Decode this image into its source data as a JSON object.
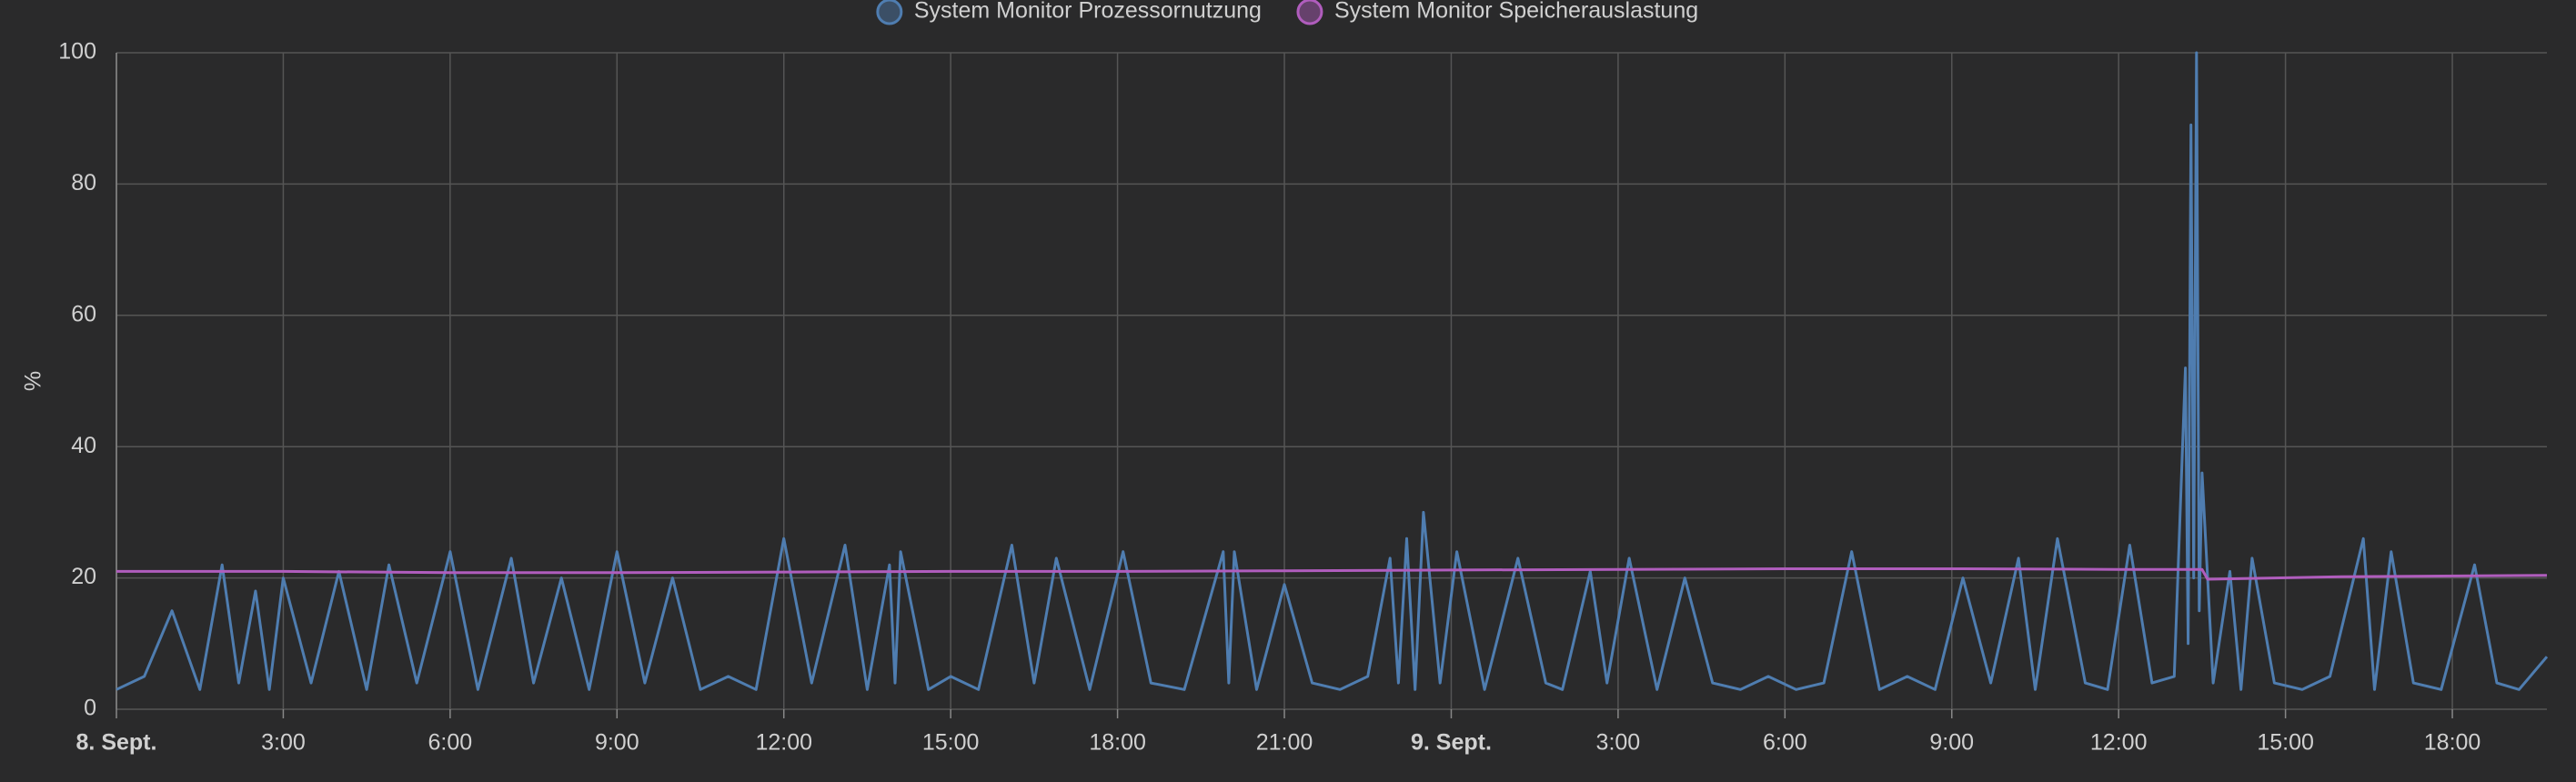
{
  "chart_data": {
    "type": "line",
    "y_label": "%",
    "xlim": [
      0,
      43.7
    ],
    "xticks": [
      {
        "value": 0,
        "label": "8. Sept."
      },
      {
        "value": 3,
        "label": "3:00"
      },
      {
        "value": 6,
        "label": "6:00"
      },
      {
        "value": 9,
        "label": "9:00"
      },
      {
        "value": 12,
        "label": "12:00"
      },
      {
        "value": 15,
        "label": "15:00"
      },
      {
        "value": 18,
        "label": "18:00"
      },
      {
        "value": 21,
        "label": "21:00"
      },
      {
        "value": 24,
        "label": "9. Sept."
      },
      {
        "value": 27,
        "label": "3:00"
      },
      {
        "value": 30,
        "label": "6:00"
      },
      {
        "value": 33,
        "label": "9:00"
      },
      {
        "value": 36,
        "label": "12:00"
      },
      {
        "value": 39,
        "label": "15:00"
      },
      {
        "value": 42,
        "label": "18:00"
      }
    ],
    "ylim": [
      0,
      100
    ],
    "yticks": [
      0,
      20,
      40,
      60,
      80,
      100
    ],
    "grid": true,
    "legend": "top",
    "series": [
      {
        "name": "System Monitor Prozessornutzung",
        "color": "#4f7db0",
        "x": [
          0,
          0.5,
          1.0,
          1.5,
          1.9,
          2.2,
          2.5,
          2.75,
          3.0,
          3.5,
          4.0,
          4.5,
          4.9,
          5.4,
          6.0,
          6.5,
          7.1,
          7.5,
          8.0,
          8.5,
          9.0,
          9.5,
          10.0,
          10.5,
          11.0,
          11.5,
          12.0,
          12.5,
          13.1,
          13.5,
          13.9,
          14.0,
          14.1,
          14.6,
          15.0,
          15.5,
          16.1,
          16.5,
          16.9,
          17.5,
          18.1,
          18.6,
          19.2,
          19.9,
          20.0,
          20.1,
          20.5,
          21.0,
          21.5,
          22.0,
          22.5,
          22.9,
          23.05,
          23.2,
          23.35,
          23.5,
          23.8,
          24.1,
          24.6,
          25.2,
          25.7,
          26.0,
          26.5,
          26.8,
          27.2,
          27.7,
          28.2,
          28.7,
          29.2,
          29.7,
          30.2,
          30.7,
          31.2,
          31.7,
          32.2,
          32.7,
          33.2,
          33.7,
          34.2,
          34.5,
          34.9,
          35.4,
          35.8,
          36.2,
          36.6,
          37.0,
          37.2,
          37.25,
          37.3,
          37.35,
          37.4,
          37.45,
          37.5,
          37.7,
          38.0,
          38.2,
          38.4,
          38.8,
          39.3,
          39.8,
          40.4,
          40.6,
          40.9,
          41.3,
          41.8,
          42.4,
          42.8,
          43.2,
          43.7
        ],
        "values": [
          3,
          5,
          15,
          3,
          22,
          4,
          18,
          3,
          20,
          4,
          21,
          3,
          22,
          4,
          24,
          3,
          23,
          4,
          20,
          3,
          24,
          4,
          20,
          3,
          5,
          3,
          26,
          4,
          25,
          3,
          22,
          4,
          24,
          3,
          5,
          3,
          25,
          4,
          23,
          3,
          24,
          4,
          3,
          24,
          4,
          24,
          3,
          19,
          4,
          3,
          5,
          23,
          4,
          26,
          3,
          30,
          4,
          24,
          3,
          23,
          4,
          3,
          21,
          4,
          23,
          3,
          20,
          4,
          3,
          5,
          3,
          4,
          24,
          3,
          5,
          3,
          20,
          4,
          23,
          3,
          26,
          4,
          3,
          25,
          4,
          5,
          52,
          10,
          89,
          20,
          100,
          15,
          36,
          4,
          21,
          3,
          23,
          4,
          3,
          5,
          26,
          3,
          24,
          4,
          3,
          22,
          4,
          3,
          8
        ]
      },
      {
        "name": "System Monitor Speicherauslastung",
        "color": "#b05dbd",
        "x": [
          0,
          3,
          6,
          9,
          12,
          15,
          18,
          21,
          24,
          27,
          30,
          33,
          36,
          37.5,
          37.6,
          40,
          43.7
        ],
        "values": [
          21,
          21,
          20.8,
          20.8,
          20.9,
          21,
          21,
          21.1,
          21.2,
          21.3,
          21.4,
          21.4,
          21.3,
          21.3,
          19.8,
          20.2,
          20.4
        ]
      }
    ]
  }
}
